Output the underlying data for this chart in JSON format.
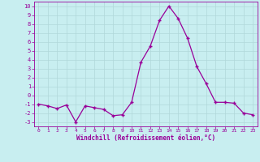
{
  "x": [
    0,
    1,
    2,
    3,
    4,
    5,
    6,
    7,
    8,
    9,
    10,
    11,
    12,
    13,
    14,
    15,
    16,
    17,
    18,
    19,
    20,
    21,
    22,
    23
  ],
  "y": [
    -1,
    -1.2,
    -1.5,
    -1.1,
    -3,
    -1.2,
    -1.4,
    -1.6,
    -2.3,
    -2.2,
    -0.8,
    3.7,
    5.5,
    8.4,
    10,
    8.6,
    6.4,
    3.2,
    1.3,
    -0.8,
    -0.8,
    -0.9,
    -2.0,
    -2.2
  ],
  "line_color": "#990099",
  "marker": "+",
  "marker_size": 4,
  "bg_color": "#c8eef0",
  "grid_color": "#aadddd",
  "xlabel": "Windchill (Refroidissement éolien,°C)",
  "xlim": [
    -0.5,
    23.5
  ],
  "ylim": [
    -3.5,
    10.5
  ],
  "xticks": [
    0,
    1,
    2,
    3,
    4,
    5,
    6,
    7,
    8,
    9,
    10,
    11,
    12,
    13,
    14,
    15,
    16,
    17,
    18,
    19,
    20,
    21,
    22,
    23
  ],
  "yticks": [
    -3,
    -2,
    -1,
    0,
    1,
    2,
    3,
    4,
    5,
    6,
    7,
    8,
    9,
    10
  ],
  "label_color": "#990099"
}
